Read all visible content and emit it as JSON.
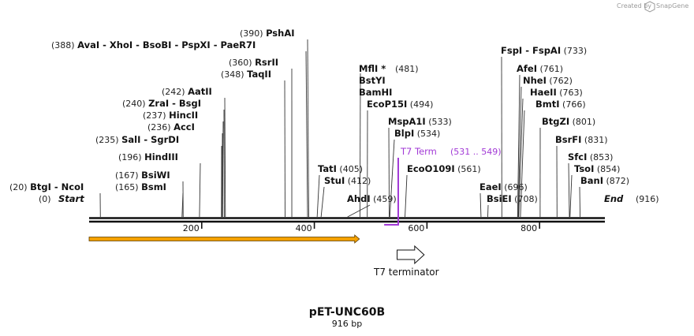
{
  "credit": "Created by",
  "brand": "SnapGene",
  "plasmid": {
    "name": "pET-UNC60B",
    "size": "916 bp"
  },
  "ticks": [
    {
      "bp": 200,
      "label": "200"
    },
    {
      "bp": 400,
      "label": "400"
    },
    {
      "bp": 600,
      "label": "600"
    },
    {
      "bp": 800,
      "label": "800"
    }
  ],
  "ends": {
    "start": {
      "pos": "(0)",
      "label": "Start"
    },
    "end": {
      "label": "End",
      "pos": "(916)"
    }
  },
  "sites": [
    {
      "id": "btgi-ncoi",
      "bp": 20,
      "pos": "(20)",
      "names": [
        "BtgI",
        "NcoI"
      ]
    },
    {
      "id": "bsmi",
      "bp": 165,
      "pos": "(165)",
      "names": [
        "BsmI"
      ]
    },
    {
      "id": "bsiwi",
      "bp": 167,
      "pos": "(167)",
      "names": [
        "BsiWI"
      ]
    },
    {
      "id": "hindiii",
      "bp": 196,
      "pos": "(196)",
      "names": [
        "HindIII"
      ]
    },
    {
      "id": "sali-sgrdi",
      "bp": 235,
      "pos": "(235)",
      "names": [
        "SalI",
        "SgrDI"
      ]
    },
    {
      "id": "acci",
      "bp": 236,
      "pos": "(236)",
      "names": [
        "AccI"
      ]
    },
    {
      "id": "hincii",
      "bp": 237,
      "pos": "(237)",
      "names": [
        "HincII"
      ]
    },
    {
      "id": "zrai-bsgi",
      "bp": 240,
      "pos": "(240)",
      "names": [
        "ZraI",
        "BsgI"
      ]
    },
    {
      "id": "aatii",
      "bp": 242,
      "pos": "(242)",
      "names": [
        "AatII"
      ]
    },
    {
      "id": "taqii",
      "bp": 348,
      "pos": "(348)",
      "names": [
        "TaqII"
      ]
    },
    {
      "id": "rsrii",
      "bp": 360,
      "pos": "(360)",
      "names": [
        "RsrII"
      ]
    },
    {
      "id": "avai-group",
      "bp": 388,
      "pos": "(388)",
      "names": [
        "AvaI",
        "XhoI",
        "BsoBI",
        "PspXI",
        "PaeR7I"
      ]
    },
    {
      "id": "pshai",
      "bp": 390,
      "pos": "(390)",
      "names": [
        "PshAI"
      ]
    },
    {
      "id": "tati",
      "bp": 405,
      "pos": "(405)",
      "names": [
        "TatI"
      ]
    },
    {
      "id": "stui",
      "bp": 412,
      "pos": "(412)",
      "names": [
        "StuI"
      ]
    },
    {
      "id": "ahdi",
      "bp": 459,
      "pos": "(459)",
      "names": [
        "AhdI"
      ]
    },
    {
      "id": "mfli-group",
      "bp": 481,
      "pos": "(481)",
      "names": [
        "MflI *",
        "BstYI",
        "BamHI"
      ]
    },
    {
      "id": "ecop15i",
      "bp": 494,
      "pos": "(494)",
      "names": [
        "EcoP15I"
      ]
    },
    {
      "id": "mspa1i",
      "bp": 533,
      "pos": "(533)",
      "names": [
        "MspA1I"
      ]
    },
    {
      "id": "blpi",
      "bp": 534,
      "pos": "(534)",
      "names": [
        "BlpI"
      ]
    },
    {
      "id": "ecoo109i",
      "bp": 561,
      "pos": "(561)",
      "names": [
        "EcoO109I"
      ]
    },
    {
      "id": "eaei",
      "bp": 696,
      "pos": "(696)",
      "names": [
        "EaeI"
      ]
    },
    {
      "id": "bsiei",
      "bp": 708,
      "pos": "(708)",
      "names": [
        "BsiEI"
      ]
    },
    {
      "id": "fspi-fspai",
      "bp": 733,
      "pos": "(733)",
      "names": [
        "FspI",
        "FspAI"
      ]
    },
    {
      "id": "afei",
      "bp": 761,
      "pos": "(761)",
      "names": [
        "AfeI"
      ]
    },
    {
      "id": "nhei",
      "bp": 762,
      "pos": "(762)",
      "names": [
        "NheI"
      ]
    },
    {
      "id": "haeii",
      "bp": 763,
      "pos": "(763)",
      "names": [
        "HaeII"
      ]
    },
    {
      "id": "bmti",
      "bp": 766,
      "pos": "(766)",
      "names": [
        "BmtI"
      ]
    },
    {
      "id": "btgzi",
      "bp": 801,
      "pos": "(801)",
      "names": [
        "BtgZI"
      ]
    },
    {
      "id": "bsrfi",
      "bp": 831,
      "pos": "(831)",
      "names": [
        "BsrFI"
      ]
    },
    {
      "id": "sfci",
      "bp": 853,
      "pos": "(853)",
      "names": [
        "SfcI"
      ]
    },
    {
      "id": "tsoi",
      "bp": 854,
      "pos": "(854)",
      "names": [
        "TsoI"
      ]
    },
    {
      "id": "bani",
      "bp": 872,
      "pos": "(872)",
      "names": [
        "BanI"
      ]
    }
  ],
  "primer": {
    "label": "T7 Term",
    "range": "(531 .. 549)",
    "start_bp": 531,
    "end_bp": 549,
    "color": "#a23ad6"
  },
  "features": [
    {
      "id": "orf",
      "start_bp": 0,
      "end_bp": 480,
      "direction": "forward",
      "fill": "#f4a100",
      "label": ""
    },
    {
      "id": "t7-terminator",
      "start_bp": 547,
      "end_bp": 595,
      "direction": "forward",
      "fill": "#ffffff",
      "label": "T7 terminator"
    }
  ]
}
